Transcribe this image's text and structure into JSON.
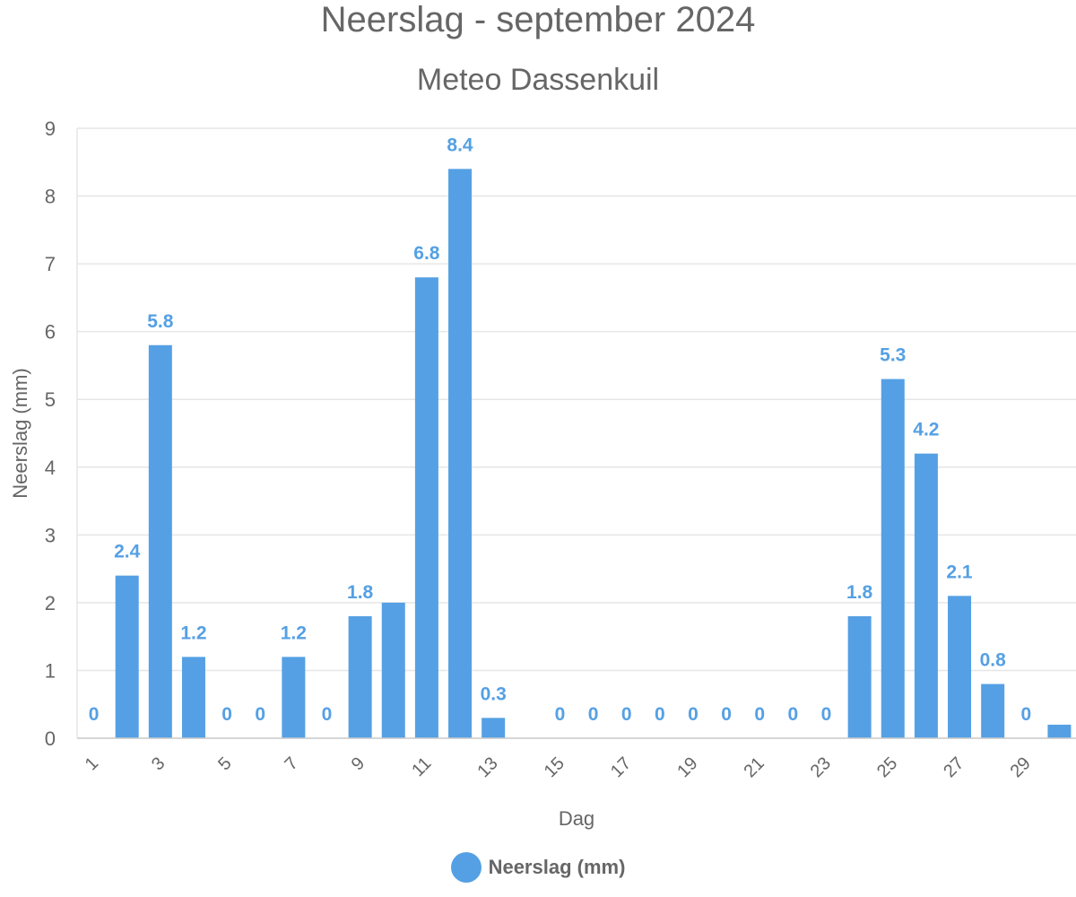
{
  "chart_data": {
    "type": "bar",
    "title": "Neerslag - september 2024",
    "subtitle": "Meteo Dassenkuil",
    "xlabel": "Dag",
    "ylabel": "Neerslag (mm)",
    "ylim": [
      0,
      9
    ],
    "yticks": [
      0,
      1,
      2,
      3,
      4,
      5,
      6,
      7,
      8,
      9
    ],
    "xtick_labels": [
      "1",
      "3",
      "5",
      "7",
      "9",
      "11",
      "13",
      "15",
      "17",
      "19",
      "21",
      "23",
      "25",
      "27",
      "29"
    ],
    "categories": [
      "1",
      "2",
      "3",
      "4",
      "5",
      "6",
      "7",
      "8",
      "9",
      "10",
      "11",
      "12",
      "13",
      "14",
      "15",
      "16",
      "17",
      "18",
      "19",
      "20",
      "21",
      "22",
      "23",
      "24",
      "25",
      "26",
      "27",
      "28",
      "29",
      "30"
    ],
    "series": [
      {
        "name": "Neerslag (mm)",
        "color": "#55a0e4",
        "values": [
          0,
          2.4,
          5.8,
          1.2,
          0,
          0,
          1.2,
          0,
          1.8,
          2.0,
          6.8,
          8.4,
          0.3,
          null,
          0,
          0,
          0,
          0,
          0,
          0,
          0,
          0,
          0,
          1.8,
          5.3,
          4.2,
          2.1,
          0.8,
          0,
          0.2
        ],
        "data_labels": [
          "0",
          "2.4",
          "5.8",
          "1.2",
          "0",
          "0",
          "1.2",
          "0",
          "1.8",
          "",
          "6.8",
          "8.4",
          "0.3",
          "",
          "0",
          "0",
          "0",
          "0",
          "0",
          "0",
          "0",
          "0",
          "0",
          "1.8",
          "5.3",
          "4.2",
          "2.1",
          "0.8",
          "0",
          ""
        ]
      }
    ],
    "grid": true,
    "legend_position": "bottom-center"
  }
}
